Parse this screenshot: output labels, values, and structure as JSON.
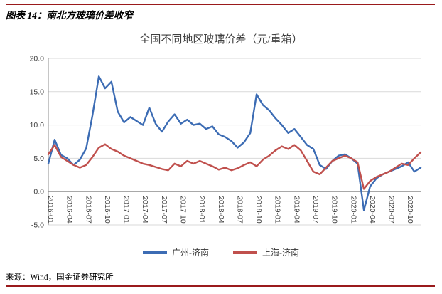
{
  "page": {
    "header": "图表 14：南北方玻璃价差收窄",
    "source": "来源：Wind，国金证券研究所",
    "accent_color": "#9a1a1c"
  },
  "chart_data": {
    "type": "line",
    "title": "全国不同地区玻璃价差（元/重箱）",
    "ylim": [
      -5,
      20
    ],
    "y_tick_step": 5,
    "x_tick_every": 3,
    "grid": true,
    "legend_position": "bottom",
    "categories": [
      "2016-01",
      "2016-02",
      "2016-03",
      "2016-04",
      "2016-05",
      "2016-06",
      "2016-07",
      "2016-08",
      "2016-09",
      "2016-10",
      "2016-11",
      "2016-12",
      "2017-01",
      "2017-02",
      "2017-03",
      "2017-04",
      "2017-05",
      "2017-06",
      "2017-07",
      "2017-08",
      "2017-09",
      "2017-10",
      "2017-11",
      "2017-12",
      "2018-01",
      "2018-02",
      "2018-03",
      "2018-04",
      "2018-05",
      "2018-06",
      "2018-07",
      "2018-08",
      "2018-09",
      "2018-10",
      "2018-11",
      "2018-12",
      "2019-01",
      "2019-02",
      "2019-03",
      "2019-04",
      "2019-05",
      "2019-06",
      "2019-07",
      "2019-08",
      "2019-09",
      "2019-10",
      "2019-11",
      "2019-12",
      "2020-01",
      "2020-02",
      "2020-03",
      "2020-04",
      "2020-05",
      "2020-06",
      "2020-07",
      "2020-08",
      "2020-09",
      "2020-10",
      "2020-11",
      "2020-12"
    ],
    "series": [
      {
        "name": "广州-济南",
        "color": "#3c6cb4",
        "values": [
          4.2,
          7.8,
          5.5,
          5.0,
          4.0,
          4.8,
          6.5,
          11.5,
          17.3,
          15.5,
          16.5,
          12.0,
          10.4,
          11.2,
          10.6,
          10.0,
          12.6,
          10.2,
          9.0,
          10.5,
          11.6,
          10.2,
          10.8,
          10.0,
          10.2,
          9.4,
          9.8,
          8.6,
          8.2,
          7.6,
          6.6,
          7.4,
          8.8,
          14.6,
          13.0,
          12.2,
          11.0,
          10.0,
          8.8,
          9.4,
          8.2,
          7.0,
          6.4,
          4.0,
          3.4,
          4.6,
          5.4,
          5.6,
          5.0,
          4.2,
          -2.8,
          0.8,
          2.0,
          2.6,
          3.0,
          3.4,
          3.8,
          4.4,
          3.0,
          3.6
        ]
      },
      {
        "name": "上海-济南",
        "color": "#c0504d",
        "values": [
          5.6,
          7.0,
          5.2,
          4.6,
          4.0,
          3.6,
          4.0,
          5.2,
          6.6,
          7.1,
          6.4,
          6.0,
          5.4,
          5.0,
          4.6,
          4.2,
          4.0,
          3.7,
          3.4,
          3.2,
          4.2,
          3.8,
          4.6,
          4.2,
          4.6,
          4.2,
          3.8,
          3.3,
          3.6,
          3.2,
          3.5,
          4.0,
          4.4,
          3.8,
          4.8,
          5.4,
          6.2,
          6.8,
          6.4,
          7.0,
          6.2,
          4.6,
          3.0,
          2.6,
          3.6,
          4.6,
          5.0,
          5.4,
          5.0,
          4.4,
          0.4,
          1.6,
          2.2,
          2.6,
          3.0,
          3.6,
          4.2,
          4.0,
          5.0,
          5.9
        ]
      }
    ]
  }
}
